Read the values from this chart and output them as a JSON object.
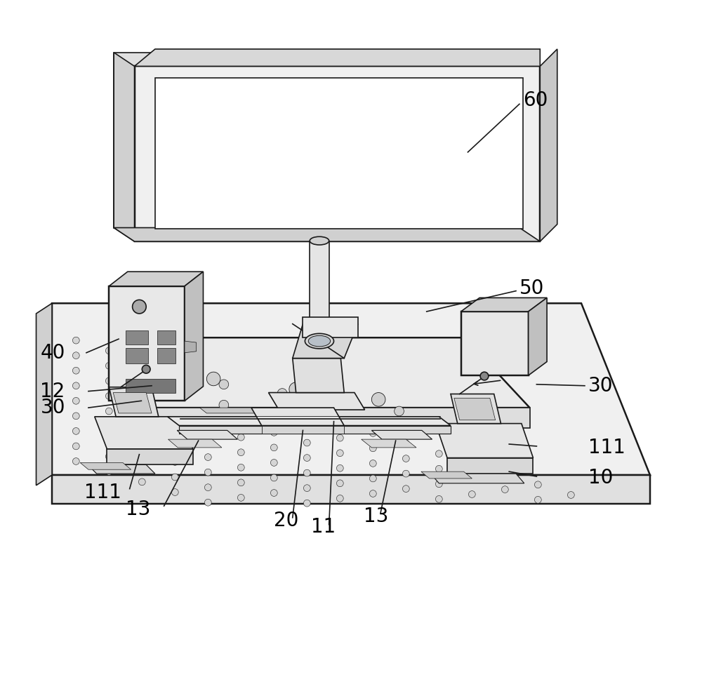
{
  "bg_color": "#ffffff",
  "line_color": "#1a1a1a",
  "lw": 1.2,
  "fig_width": 10.0,
  "fig_height": 9.82,
  "label_fontsize": 20
}
